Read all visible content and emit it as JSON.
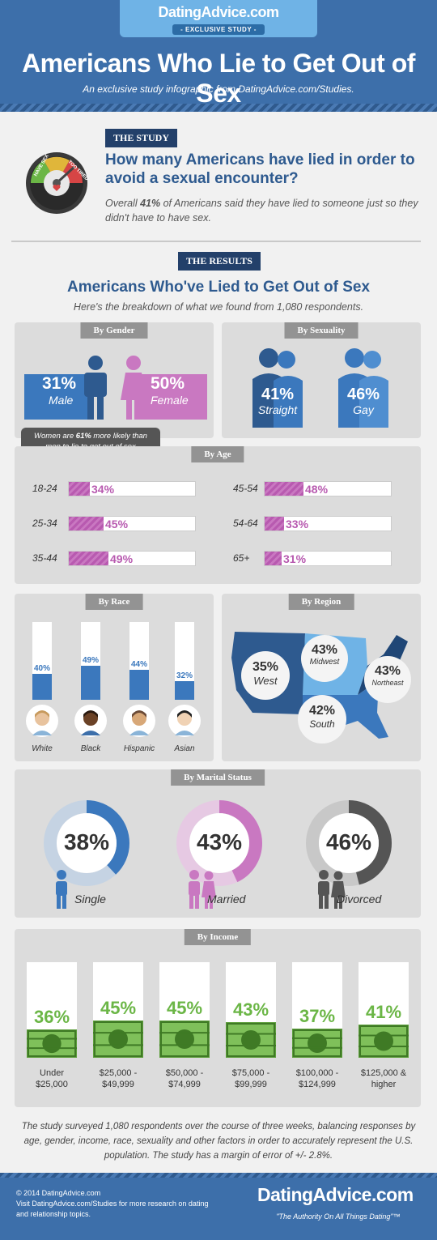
{
  "header": {
    "logo": "DatingAdvice.com",
    "badge": "- EXCLUSIVE STUDY -",
    "title": "Americans Who Lie to Get Out of Sex",
    "subtitle": "An exclusive study infographic from DatingAdvice.com/Studies."
  },
  "study": {
    "ribbon": "THE STUDY",
    "gauge_left": "HAVE SEX",
    "gauge_right": "TOO TIRED",
    "question": "How many Americans have lied in order to avoid a sexual encounter?",
    "overall_prefix": "Overall ",
    "overall_value": "41%",
    "overall_suffix": " of Americans said they have lied to someone just so they didn't have to have sex."
  },
  "results": {
    "ribbon": "THE RESULTS",
    "title": "Americans Who've Lied to Get Out of Sex",
    "subtitle": "Here's the breakdown of what we found from 1,080 respondents."
  },
  "gender": {
    "tab": "By Gender",
    "male_pct": "31%",
    "male_label": "Male",
    "female_pct": "50%",
    "female_label": "Female",
    "note_prefix": "Women are ",
    "note_value": "61%",
    "note_suffix": " more likely than men to lie to get out of sex",
    "male_color": "#2e5a8f",
    "female_color": "#c978c1"
  },
  "sexuality": {
    "tab": "By Sexuality",
    "items": [
      {
        "pct": "41%",
        "label": "Straight"
      },
      {
        "pct": "46%",
        "label": "Gay"
      }
    ]
  },
  "age": {
    "tab": "By Age",
    "items": [
      {
        "label": "18-24",
        "value": 34,
        "text": "34%"
      },
      {
        "label": "25-34",
        "value": 45,
        "text": "45%"
      },
      {
        "label": "35-44",
        "value": 49,
        "text": "49%"
      },
      {
        "label": "45-54",
        "value": 48,
        "text": "48%"
      },
      {
        "label": "54-64",
        "value": 33,
        "text": "33%"
      },
      {
        "label": "65+",
        "value": 31,
        "text": "31%"
      }
    ]
  },
  "race": {
    "tab": "By Race",
    "items": [
      {
        "label": "White",
        "value": 40,
        "text": "40%"
      },
      {
        "label": "Black",
        "value": 49,
        "text": "49%"
      },
      {
        "label": "Hispanic",
        "value": 44,
        "text": "44%"
      },
      {
        "label": "Asian",
        "value": 32,
        "text": "32%"
      }
    ]
  },
  "region": {
    "tab": "By Region",
    "items": [
      {
        "pct": "35%",
        "label": "West"
      },
      {
        "pct": "43%",
        "label": "Midwest"
      },
      {
        "pct": "43%",
        "label": "Northeast"
      },
      {
        "pct": "42%",
        "label": "South"
      }
    ]
  },
  "marital": {
    "tab": "By Marital Status",
    "items": [
      {
        "pct": "38%",
        "value": 38,
        "label": "Single",
        "color": "#3b78bd",
        "track": "#c5d3e3"
      },
      {
        "pct": "43%",
        "value": 43,
        "label": "Married",
        "color": "#c978c1",
        "track": "#e6c9e3"
      },
      {
        "pct": "46%",
        "value": 46,
        "label": "Divorced",
        "color": "#555555",
        "track": "#c8c8c8"
      }
    ]
  },
  "income": {
    "tab": "By Income",
    "items": [
      {
        "value": 36,
        "text": "36%",
        "label1": "Under",
        "label2": "$25,000"
      },
      {
        "value": 45,
        "text": "45%",
        "label1": "$25,000 -",
        "label2": "$49,999"
      },
      {
        "value": 45,
        "text": "45%",
        "label1": "$50,000 -",
        "label2": "$74,999"
      },
      {
        "value": 43,
        "text": "43%",
        "label1": "$75,000 -",
        "label2": "$99,999"
      },
      {
        "value": 37,
        "text": "37%",
        "label1": "$100,000 -",
        "label2": "$124,999"
      },
      {
        "value": 41,
        "text": "41%",
        "label1": "$125,000 &",
        "label2": "higher"
      }
    ]
  },
  "footer": {
    "note": "The study surveyed 1,080 respondents over the course of three weeks, balancing responses by age, gender, income, race, sexuality and other factors in order to accurately represent the U.S. population. The study has a margin of error of +/- 2.8%.",
    "copyright": "© 2014 DatingAdvice.com",
    "visit": "Visit DatingAdvice.com/Studies for more research on dating and relationship topics.",
    "logo": "DatingAdvice.com",
    "tagline": "\"The Authority On All Things Dating\"™"
  }
}
